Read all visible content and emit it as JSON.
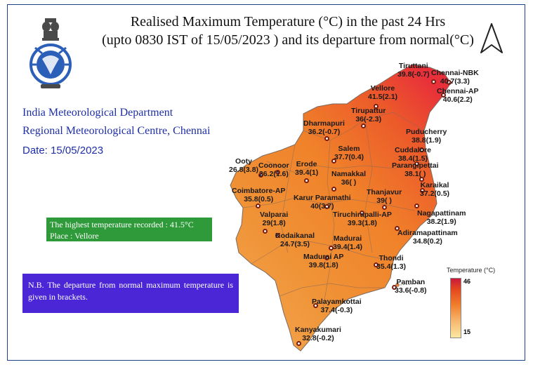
{
  "header": {
    "title_line1": "Realised Maximum Temperature (°C) in the past 24 Hrs",
    "title_line2": "(upto 0830 IST of  15/05/2023 ) and its departure from normal(°C)"
  },
  "org": {
    "line1": "India Meteorological Department",
    "line2": "Regional Meteorological Centre, Chennai",
    "date": "Date: 15/05/2023"
  },
  "highlight": {
    "line1": "The highest temperature recorded : 41.5°C",
    "line2": "Place : Vellore"
  },
  "note": "N.B. The departure from normal maximum temperature is given in brackets.",
  "legend": {
    "title": "Temperature (°C)",
    "max": "46",
    "min": "15",
    "colors": [
      "#c91a3c",
      "#e4471f",
      "#f07f2c",
      "#f6b36a",
      "#fbe9a2"
    ]
  },
  "stations": [
    {
      "name": "Tiruttani",
      "value": "39.8(-0.7)"
    },
    {
      "name": "Chennai-NBK",
      "value": "40.7(3.3)"
    },
    {
      "name": "Chennai-AP",
      "value": "40.6(2.2)"
    },
    {
      "name": "Vellore",
      "value": "41.5(2.1)"
    },
    {
      "name": "Tirupattur",
      "value": "36(-2.3)"
    },
    {
      "name": "Dharmapuri",
      "value": "36.2(-0.7)"
    },
    {
      "name": "Puducherry",
      "value": "38.8(1.9)"
    },
    {
      "name": "Cuddalore",
      "value": "38.4(1.5)"
    },
    {
      "name": "Parangipettai",
      "value": "38.1( )"
    },
    {
      "name": "Salem",
      "value": "37.7(0.4)"
    },
    {
      "name": "Erode",
      "value": "39.4(1)"
    },
    {
      "name": "Coonoor",
      "value": "26.2(1.6)"
    },
    {
      "name": "Ooty",
      "value": "26.8(3.8)"
    },
    {
      "name": "Namakkal",
      "value": "36( )"
    },
    {
      "name": "Karaikal",
      "value": "37.2(0.5)"
    },
    {
      "name": "Coimbatore-AP",
      "value": "35.8(0.5)"
    },
    {
      "name": "Karur Paramathi",
      "value": "40(3.7)"
    },
    {
      "name": "Thanjavur",
      "value": "39( )"
    },
    {
      "name": "Nagapattinam",
      "value": "38.2(1.9)"
    },
    {
      "name": "Valparai",
      "value": "29(1.8)"
    },
    {
      "name": "Tiruchirapalli-AP",
      "value": "39.3(1.8)"
    },
    {
      "name": "Adiramapattinam",
      "value": "34.8(0.2)"
    },
    {
      "name": "Kodaikanal",
      "value": "24.7(3.5)"
    },
    {
      "name": "Madurai",
      "value": "39.4(1.4)"
    },
    {
      "name": "Madurai AP",
      "value": "39.8(1.8)"
    },
    {
      "name": "Thondi",
      "value": "35.4(1.3)"
    },
    {
      "name": "Pamban",
      "value": "33.6(-0.8)"
    },
    {
      "name": "Palayamkottai",
      "value": "37.4(-0.3)"
    },
    {
      "name": "Kanyakumari",
      "value": "32.8(-0.2)"
    }
  ]
}
